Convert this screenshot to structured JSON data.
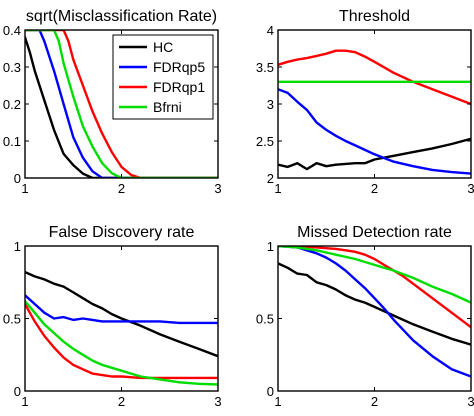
{
  "chart_data": [
    {
      "type": "line",
      "title": "sqrt(Misclassification Rate)",
      "xlim": [
        1,
        3
      ],
      "ylim": [
        0,
        0.4
      ],
      "xticks": [
        1,
        2,
        3
      ],
      "yticks": [
        0,
        0.1,
        0.2,
        0.3,
        0.4
      ],
      "ytick_labels": [
        "0",
        "0.1",
        "0.2",
        "0.3",
        "0.4"
      ],
      "legend": {
        "position": "top-right",
        "entries": [
          "HC",
          "FDRqp5",
          "FDRqp1",
          "Bfrni"
        ]
      },
      "series": [
        {
          "name": "HC",
          "color": "#000000",
          "x": [
            1.0,
            1.05,
            1.1,
            1.2,
            1.3,
            1.4,
            1.5,
            1.6,
            1.7,
            1.8,
            1.9,
            2.0,
            2.2,
            2.5,
            3.0
          ],
          "y": [
            0.38,
            0.34,
            0.29,
            0.21,
            0.13,
            0.065,
            0.035,
            0.012,
            0.0,
            0.0,
            0.0,
            0.0,
            0.0,
            0.0,
            0.0
          ]
        },
        {
          "name": "FDRqp5",
          "color": "#0000ff",
          "x": [
            1.0,
            1.15,
            1.2,
            1.3,
            1.4,
            1.5,
            1.6,
            1.7,
            1.8,
            1.9,
            2.0,
            2.5,
            3.0
          ],
          "y": [
            0.4,
            0.4,
            0.37,
            0.29,
            0.2,
            0.11,
            0.055,
            0.018,
            0.0,
            0.0,
            0.0,
            0.0,
            0.0
          ]
        },
        {
          "name": "FDRqp1",
          "color": "#ff0000",
          "x": [
            1.0,
            1.4,
            1.45,
            1.5,
            1.6,
            1.7,
            1.8,
            1.9,
            2.0,
            2.1,
            2.2,
            2.5,
            3.0
          ],
          "y": [
            0.4,
            0.4,
            0.37,
            0.32,
            0.25,
            0.18,
            0.12,
            0.07,
            0.03,
            0.008,
            0.0,
            0.0,
            0.0
          ]
        },
        {
          "name": "Bfrni",
          "color": "#00dd00",
          "x": [
            1.0,
            1.3,
            1.35,
            1.4,
            1.5,
            1.6,
            1.7,
            1.8,
            1.9,
            2.0,
            2.1,
            2.5,
            3.0
          ],
          "y": [
            0.4,
            0.4,
            0.37,
            0.31,
            0.22,
            0.14,
            0.085,
            0.04,
            0.013,
            0.0,
            0.0,
            0.0,
            0.0
          ]
        }
      ]
    },
    {
      "type": "line",
      "title": "Threshold",
      "xlim": [
        1,
        3
      ],
      "ylim": [
        2,
        4
      ],
      "xticks": [
        1,
        2,
        3
      ],
      "yticks": [
        2,
        2.5,
        3,
        3.5,
        4
      ],
      "ytick_labels": [
        "2",
        "2.5",
        "3",
        "3.5",
        "4"
      ],
      "series": [
        {
          "name": "HC",
          "color": "#000000",
          "x": [
            1.0,
            1.1,
            1.2,
            1.3,
            1.4,
            1.5,
            1.6,
            1.8,
            1.9,
            2.0,
            2.2,
            2.4,
            2.6,
            2.8,
            3.0
          ],
          "y": [
            2.18,
            2.15,
            2.2,
            2.12,
            2.2,
            2.16,
            2.18,
            2.2,
            2.2,
            2.25,
            2.3,
            2.35,
            2.4,
            2.46,
            2.53
          ]
        },
        {
          "name": "FDRqp5",
          "color": "#0000ff",
          "x": [
            1.0,
            1.1,
            1.2,
            1.3,
            1.4,
            1.5,
            1.6,
            1.7,
            1.8,
            1.9,
            2.0,
            2.2,
            2.4,
            2.6,
            2.8,
            3.0
          ],
          "y": [
            3.2,
            3.15,
            3.03,
            2.92,
            2.75,
            2.65,
            2.57,
            2.5,
            2.44,
            2.38,
            2.32,
            2.22,
            2.16,
            2.11,
            2.08,
            2.06
          ]
        },
        {
          "name": "FDRqp1",
          "color": "#ff0000",
          "x": [
            1.0,
            1.1,
            1.2,
            1.3,
            1.4,
            1.5,
            1.6,
            1.7,
            1.8,
            1.9,
            2.0,
            2.2,
            2.4,
            2.6,
            2.8,
            3.0
          ],
          "y": [
            3.53,
            3.57,
            3.6,
            3.62,
            3.65,
            3.68,
            3.72,
            3.72,
            3.7,
            3.64,
            3.57,
            3.42,
            3.3,
            3.2,
            3.1,
            3.0
          ]
        },
        {
          "name": "Bfrni",
          "color": "#00dd00",
          "x": [
            1.0,
            3.0
          ],
          "y": [
            3.3,
            3.3
          ]
        }
      ]
    },
    {
      "type": "line",
      "title": "False Discovery rate",
      "xlim": [
        1,
        3
      ],
      "ylim": [
        0,
        1
      ],
      "xticks": [
        1,
        2,
        3
      ],
      "yticks": [
        0,
        0.5,
        1
      ],
      "ytick_labels": [
        "0",
        "0.5",
        "1"
      ],
      "series": [
        {
          "name": "HC",
          "color": "#000000",
          "x": [
            1.0,
            1.1,
            1.2,
            1.3,
            1.4,
            1.5,
            1.6,
            1.7,
            1.8,
            1.9,
            2.0,
            2.2,
            2.4,
            2.6,
            2.8,
            3.0
          ],
          "y": [
            0.82,
            0.79,
            0.77,
            0.74,
            0.72,
            0.68,
            0.64,
            0.6,
            0.57,
            0.53,
            0.5,
            0.45,
            0.39,
            0.34,
            0.29,
            0.24
          ]
        },
        {
          "name": "FDRqp5",
          "color": "#0000ff",
          "x": [
            1.0,
            1.1,
            1.2,
            1.3,
            1.4,
            1.5,
            1.6,
            1.7,
            1.8,
            2.0,
            2.2,
            2.4,
            2.6,
            2.8,
            3.0
          ],
          "y": [
            0.66,
            0.6,
            0.54,
            0.5,
            0.51,
            0.49,
            0.5,
            0.49,
            0.48,
            0.48,
            0.48,
            0.48,
            0.47,
            0.47,
            0.47
          ]
        },
        {
          "name": "FDRqp1",
          "color": "#ff0000",
          "x": [
            1.0,
            1.1,
            1.2,
            1.3,
            1.4,
            1.5,
            1.6,
            1.7,
            1.8,
            1.9,
            2.0,
            2.2,
            2.4,
            2.6,
            2.8,
            3.0
          ],
          "y": [
            0.6,
            0.48,
            0.38,
            0.3,
            0.23,
            0.18,
            0.15,
            0.12,
            0.11,
            0.1,
            0.1,
            0.09,
            0.09,
            0.09,
            0.09,
            0.09
          ]
        },
        {
          "name": "Bfrni",
          "color": "#00dd00",
          "x": [
            1.0,
            1.1,
            1.2,
            1.3,
            1.4,
            1.5,
            1.6,
            1.7,
            1.8,
            1.9,
            2.0,
            2.2,
            2.4,
            2.6,
            2.8,
            3.0
          ],
          "y": [
            0.62,
            0.54,
            0.46,
            0.4,
            0.34,
            0.29,
            0.25,
            0.21,
            0.18,
            0.16,
            0.14,
            0.1,
            0.08,
            0.06,
            0.05,
            0.045
          ]
        }
      ]
    },
    {
      "type": "line",
      "title": "Missed Detection rate",
      "xlim": [
        1,
        3
      ],
      "ylim": [
        0,
        1
      ],
      "xticks": [
        1,
        2,
        3
      ],
      "yticks": [
        0,
        0.5,
        1
      ],
      "ytick_labels": [
        "0",
        "0.5",
        "1"
      ],
      "series": [
        {
          "name": "HC",
          "color": "#000000",
          "x": [
            1.0,
            1.1,
            1.2,
            1.3,
            1.4,
            1.5,
            1.6,
            1.7,
            1.8,
            1.9,
            2.0,
            2.2,
            2.4,
            2.6,
            2.8,
            3.0
          ],
          "y": [
            0.88,
            0.85,
            0.81,
            0.8,
            0.75,
            0.73,
            0.7,
            0.66,
            0.63,
            0.61,
            0.58,
            0.52,
            0.46,
            0.41,
            0.36,
            0.32
          ]
        },
        {
          "name": "FDRqp5",
          "color": "#0000ff",
          "x": [
            1.0,
            1.2,
            1.3,
            1.4,
            1.5,
            1.6,
            1.7,
            1.8,
            1.9,
            2.0,
            2.1,
            2.2,
            2.4,
            2.6,
            2.8,
            3.0
          ],
          "y": [
            1.0,
            0.99,
            0.97,
            0.95,
            0.92,
            0.88,
            0.83,
            0.77,
            0.71,
            0.64,
            0.57,
            0.49,
            0.35,
            0.24,
            0.15,
            0.1
          ]
        },
        {
          "name": "FDRqp1",
          "color": "#ff0000",
          "x": [
            1.0,
            1.2,
            1.4,
            1.6,
            1.7,
            1.8,
            1.9,
            2.0,
            2.1,
            2.2,
            2.3,
            2.4,
            2.6,
            2.8,
            3.0
          ],
          "y": [
            1.0,
            1.0,
            0.99,
            0.98,
            0.97,
            0.96,
            0.94,
            0.91,
            0.87,
            0.83,
            0.79,
            0.74,
            0.64,
            0.54,
            0.44
          ]
        },
        {
          "name": "Bfrni",
          "color": "#00dd00",
          "x": [
            1.0,
            1.2,
            1.4,
            1.6,
            1.8,
            2.0,
            2.2,
            2.4,
            2.6,
            2.8,
            3.0
          ],
          "y": [
            1.0,
            0.99,
            0.97,
            0.94,
            0.91,
            0.87,
            0.83,
            0.78,
            0.72,
            0.67,
            0.61
          ]
        }
      ]
    }
  ]
}
